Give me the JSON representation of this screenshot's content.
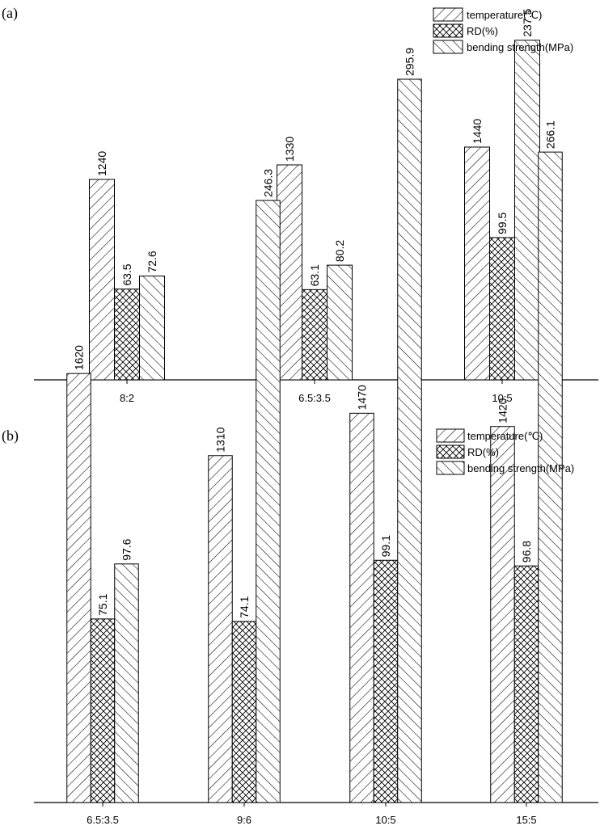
{
  "chart_data": [
    {
      "type": "bar",
      "panel_label": "(a)",
      "categories": [
        "8:2",
        "6.5:3.5",
        "10:5"
      ],
      "series": [
        {
          "name": "temperature(℃)",
          "values": [
            1240,
            1330,
            1440
          ],
          "labels": [
            "1240",
            "1330",
            "1440"
          ],
          "scale_max": 2300
        },
        {
          "name": "RD(%)",
          "values": [
            63.5,
            63.1,
            99.5
          ],
          "labels": [
            "63.5",
            "63.1",
            "99.5"
          ],
          "scale_max": 260
        },
        {
          "name": "bending strength(MPa)",
          "values": [
            72.6,
            80.2,
            237.5
          ],
          "labels": [
            "72.6",
            "80.2",
            "237.5"
          ],
          "scale_max": 260
        }
      ],
      "patterns": [
        "backslash",
        "crosshatch",
        "slash"
      ],
      "legend_position": "top-right",
      "grid": false,
      "y_axis_shown": false,
      "title": "",
      "xlabel": "",
      "ylabel": ""
    },
    {
      "type": "bar",
      "panel_label": "(b)",
      "categories": [
        "6.5:3.5",
        "9:6",
        "10:5",
        "15:5"
      ],
      "series": [
        {
          "name": "temperature(℃)",
          "values": [
            1620,
            1310,
            1470,
            1420
          ],
          "labels": [
            "1620",
            "1310",
            "1470",
            "1420"
          ],
          "scale_max": 3000
        },
        {
          "name": "RD(%)",
          "values": [
            75.1,
            74.1,
            99.1,
            96.8
          ],
          "labels": [
            "75.1",
            "74.1",
            "99.1",
            "96.8"
          ],
          "scale_max": 325
        },
        {
          "name": "bending strength(MPa)",
          "values": [
            97.6,
            246.3,
            295.9,
            266.1
          ],
          "labels": [
            "97.6",
            "246.3",
            "295.9",
            "266.1"
          ],
          "scale_max": 325
        }
      ],
      "patterns": [
        "backslash",
        "crosshatch",
        "slash"
      ],
      "legend_position": "top-right",
      "grid": false,
      "y_axis_shown": false,
      "title": "",
      "xlabel": "",
      "ylabel": ""
    }
  ]
}
